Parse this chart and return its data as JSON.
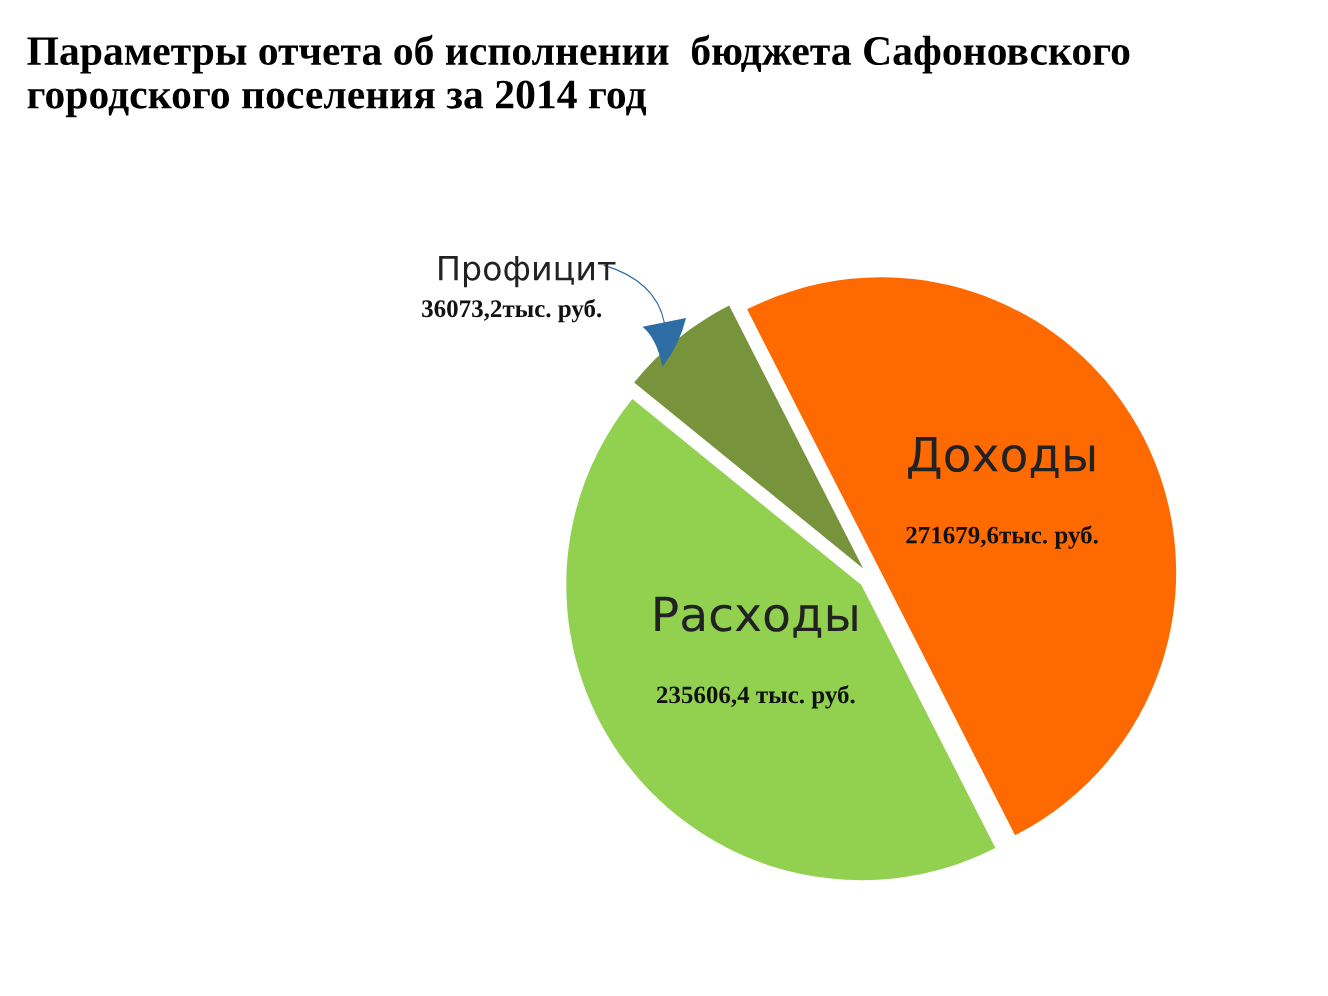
{
  "chart_data": {
    "type": "pie",
    "title": "Параметры отчета об исполнении  бюджета Сафоновского городского поселения за 2014 год",
    "categories": [
      "Доходы",
      "Расходы",
      "Профицит"
    ],
    "values": [
      271679.6,
      235606.4,
      36073.2
    ],
    "value_labels": [
      "271679,6тыс. руб.",
      "235606,4 тыс. руб.",
      "36073,2тыс. руб."
    ],
    "colors": [
      "#ff6a00",
      "#92d050",
      "#77933c"
    ],
    "legend": false
  }
}
